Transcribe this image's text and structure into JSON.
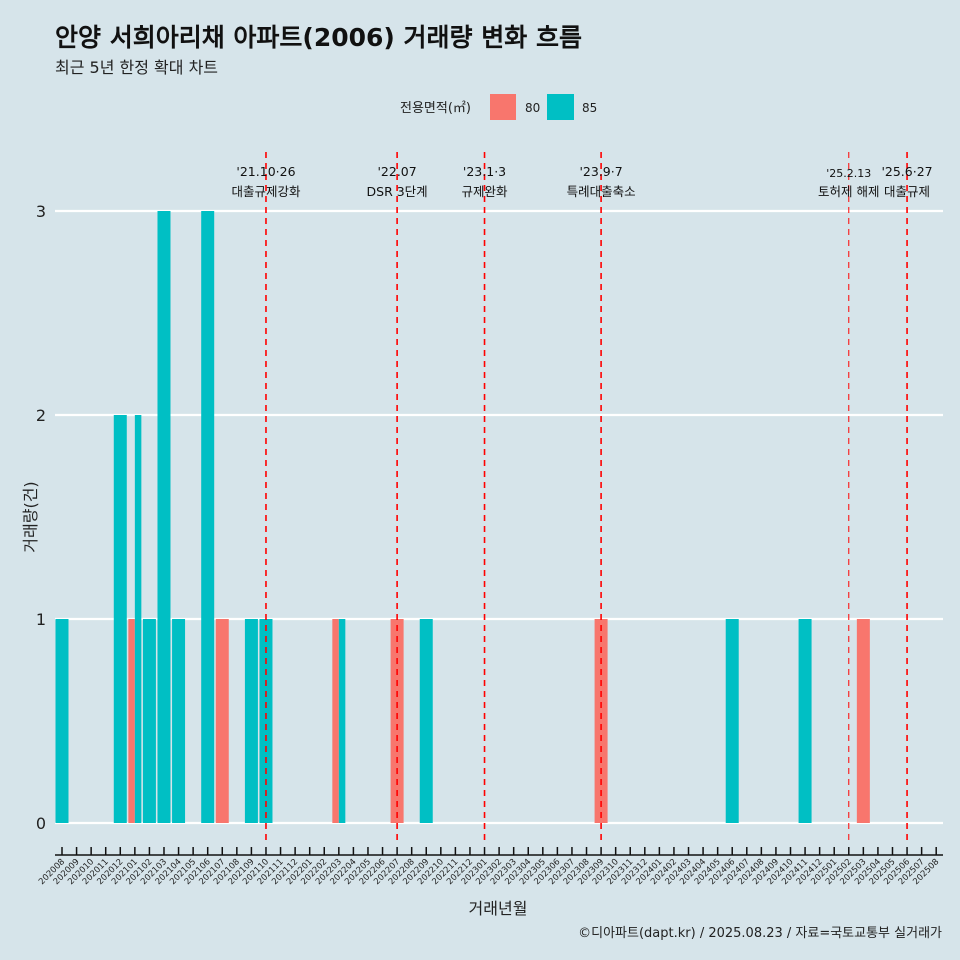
{
  "title": "안양 서희아리채 아파트(2006) 거래량 변화 흐름",
  "subtitle": "최근 5년 한정 확대 차트",
  "caption": "©디아파트(dapt.kr) / 2025.08.23 / 자료=국토교통부 실거래가",
  "chart_data": {
    "type": "bar",
    "xlabel": "거래년월",
    "ylabel": "거래량(건)",
    "ylim": [
      0,
      3
    ],
    "yticks": [
      0,
      1,
      2,
      3
    ],
    "grid": true,
    "legend": {
      "title": "전용면적(㎡)",
      "position": "top",
      "entries": [
        "80",
        "85"
      ]
    },
    "colors": {
      "80": "#f8766d",
      "85": "#00bfc4",
      "event": "#ff0000"
    },
    "categories": [
      "202008",
      "202009",
      "202010",
      "202011",
      "202012",
      "202101",
      "202102",
      "202103",
      "202104",
      "202105",
      "202106",
      "202107",
      "202108",
      "202109",
      "202110",
      "202111",
      "202112",
      "202201",
      "202202",
      "202203",
      "202204",
      "202205",
      "202206",
      "202207",
      "202208",
      "202209",
      "202210",
      "202211",
      "202212",
      "202301",
      "202302",
      "202303",
      "202304",
      "202305",
      "202306",
      "202307",
      "202308",
      "202309",
      "202310",
      "202311",
      "202312",
      "202401",
      "202402",
      "202403",
      "202404",
      "202405",
      "202406",
      "202407",
      "202408",
      "202409",
      "202410",
      "202411",
      "202412",
      "202501",
      "202502",
      "202503",
      "202504",
      "202505",
      "202506",
      "202507",
      "202508"
    ],
    "series": [
      {
        "name": "80",
        "points": {
          "202101": 1,
          "202107": 1,
          "202203": 1,
          "202207": 1,
          "202309": 1,
          "202503": 1
        }
      },
      {
        "name": "85",
        "points": {
          "202008": 1,
          "202012": 2,
          "202101": 2,
          "202102": 1,
          "202103": 3,
          "202104": 1,
          "202106": 3,
          "202109": 1,
          "202110": 1,
          "202203": 1,
          "202209": 1,
          "202406": 1,
          "202411": 1
        }
      }
    ],
    "events": [
      {
        "month": "202110",
        "date": "'21.10·26",
        "label": "대출규제강화",
        "thin": false
      },
      {
        "month": "202207",
        "date": "'22.07",
        "label": "DSR 3단계",
        "thin": false
      },
      {
        "month": "202301",
        "date": "'23.1·3",
        "label": "규제완화",
        "thin": false
      },
      {
        "month": "202309",
        "date": "'23.9·7",
        "label": "특례대출축소",
        "thin": false
      },
      {
        "month": "202502",
        "date": "'25.2.13",
        "label": "토허제 해제",
        "thin": true
      },
      {
        "month": "202506",
        "date": "'25.6·27",
        "label": "대출규제",
        "thin": false
      }
    ]
  }
}
